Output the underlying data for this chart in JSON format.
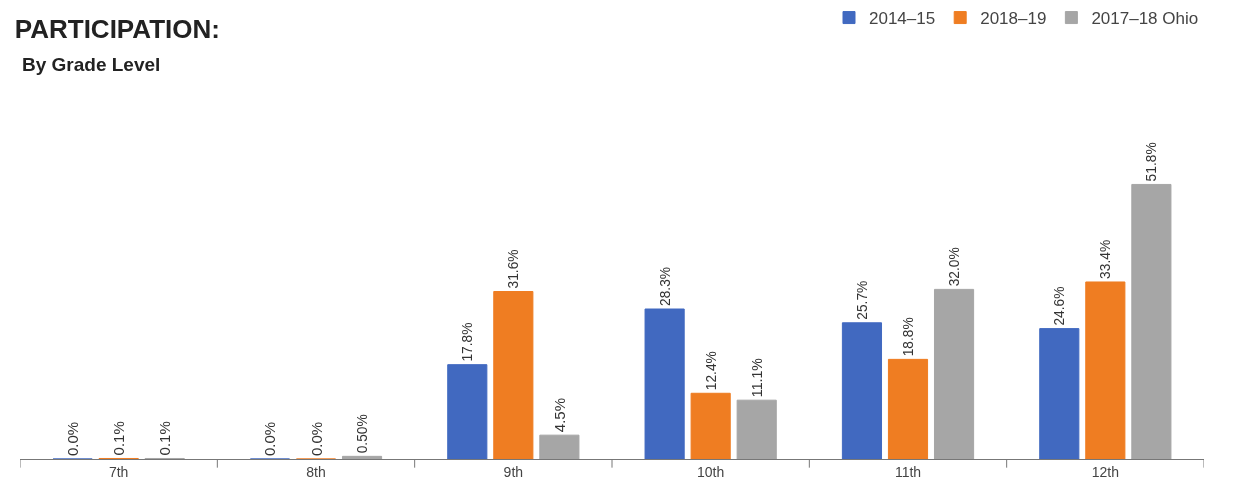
{
  "chart_data": {
    "type": "bar",
    "title": "PARTICIPATION:",
    "subtitle": "By Grade Level",
    "categories": [
      "7th",
      "8th",
      "9th",
      "10th",
      "11th",
      "12th"
    ],
    "series": [
      {
        "name": "2014–15",
        "color": "#4169c0",
        "values": [
          0.0,
          0.0,
          17.8,
          28.3,
          25.7,
          24.6
        ],
        "value_labels": [
          "0.0%",
          "0.0%",
          "17.8%",
          "28.3%",
          "25.7%",
          "24.6%"
        ]
      },
      {
        "name": "2018–19",
        "color": "#ef7d22",
        "values": [
          0.1,
          0.0,
          31.6,
          12.4,
          18.8,
          33.4
        ],
        "value_labels": [
          "0.1%",
          "0.0%",
          "31.6%",
          "12.4%",
          "18.8%",
          "33.4%"
        ]
      },
      {
        "name": "2017–18 Ohio",
        "color": "#a6a6a6",
        "values": [
          0.1,
          0.5,
          4.5,
          11.1,
          32.0,
          51.8
        ],
        "value_labels": [
          "0.1%",
          "0.50%",
          "4.5%",
          "11.1%",
          "32.0%",
          "51.8%"
        ]
      }
    ],
    "legend": "top right"
  }
}
